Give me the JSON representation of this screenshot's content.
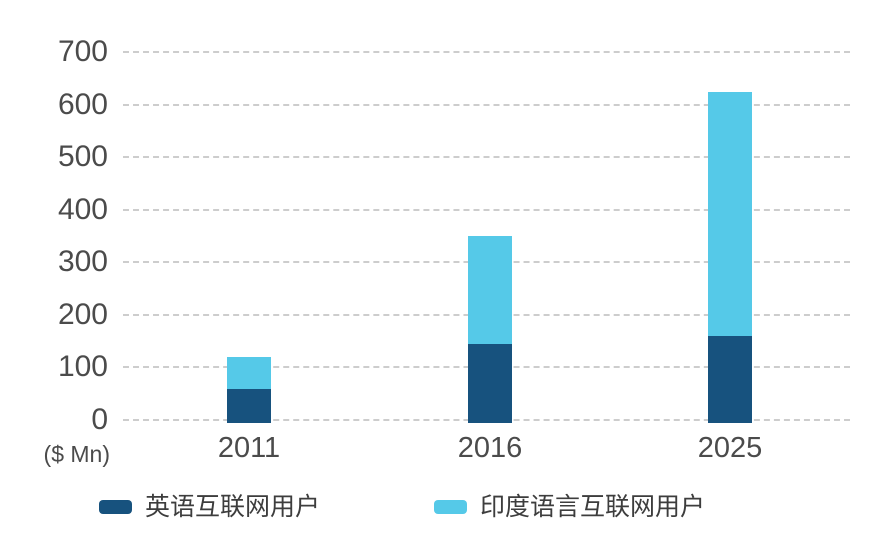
{
  "chart_data": {
    "type": "bar",
    "stacked": true,
    "title": "",
    "unit_label": "($ Mn)",
    "categories": [
      "2011",
      "2016",
      "2025"
    ],
    "series": [
      {
        "name": "英语互联网用户",
        "color": "#17527e",
        "values": [
          65,
          150,
          165
        ]
      },
      {
        "name": "印度语言互联网用户",
        "color": "#55c9e8",
        "values": [
          60,
          205,
          465
        ]
      }
    ],
    "totals": [
      125,
      355,
      630
    ],
    "y_ticks": [
      0,
      100,
      200,
      300,
      400,
      500,
      600,
      700
    ],
    "ylim": [
      0,
      700
    ],
    "grid": "horizontal-dashed",
    "gridline_color": "#cdcdcd",
    "axis_text_color": "#4b4b4b",
    "legend_position": "bottom"
  },
  "legend": {
    "items": [
      {
        "label": "英语互联网用户",
        "color": "#17527e"
      },
      {
        "label": "印度语言互联网用户",
        "color": "#55c9e8"
      }
    ]
  }
}
